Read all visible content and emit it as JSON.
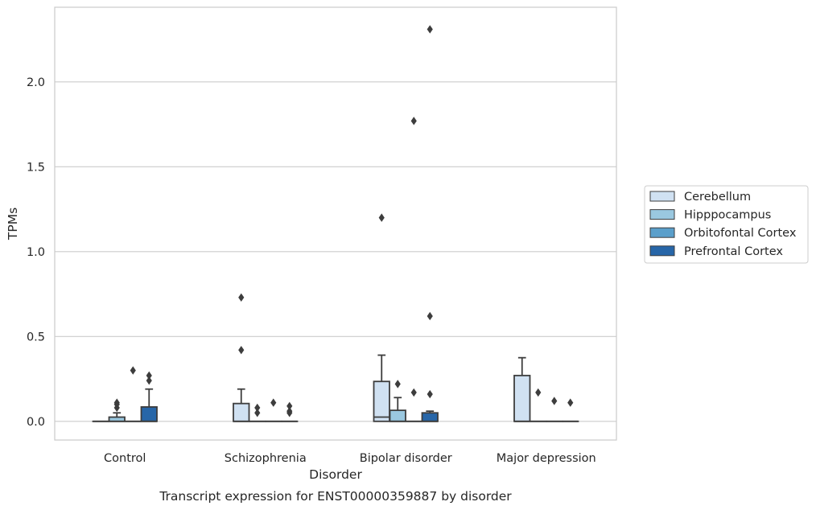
{
  "chart_data": {
    "type": "box",
    "title": "",
    "caption": "Transcript expression for ENST00000359887 by disorder",
    "xlabel": "Disorder",
    "ylabel": "TPMs",
    "ylim": [
      -0.11,
      2.44
    ],
    "yticks": [
      0.0,
      0.5,
      1.0,
      1.5,
      2.0
    ],
    "ytick_labels": [
      "0.0",
      "0.5",
      "1.0",
      "1.5",
      "2.0"
    ],
    "grid": "horizontal",
    "legend_position": "right",
    "categories": [
      "Control",
      "Schizophrenia",
      "Bipolar disorder",
      "Major depression"
    ],
    "series": [
      {
        "name": "Cerebellum",
        "color": "#d0e1f2",
        "boxes": [
          {
            "q1": 0,
            "median": 0,
            "q3": 0,
            "whislo": 0,
            "whishi": 0,
            "fliers": []
          },
          {
            "q1": 0,
            "median": 0,
            "q3": 0.105,
            "whislo": 0,
            "whishi": 0.19,
            "fliers": [
              0.42,
              0.73
            ]
          },
          {
            "q1": 0,
            "median": 0.025,
            "q3": 0.235,
            "whislo": 0,
            "whishi": 0.39,
            "fliers": [
              1.2
            ]
          },
          {
            "q1": 0,
            "median": 0,
            "q3": 0.27,
            "whislo": 0,
            "whishi": 0.375,
            "fliers": []
          }
        ]
      },
      {
        "name": "Hipppocampus",
        "color": "#9ac8e0",
        "boxes": [
          {
            "q1": 0,
            "median": 0,
            "q3": 0.025,
            "whislo": 0,
            "whishi": 0.05,
            "fliers": [
              0.08,
              0.1,
              0.11
            ]
          },
          {
            "q1": 0,
            "median": 0,
            "q3": 0,
            "whislo": 0,
            "whishi": 0,
            "fliers": [
              0.05,
              0.08
            ]
          },
          {
            "q1": 0,
            "median": 0,
            "q3": 0.065,
            "whislo": 0,
            "whishi": 0.14,
            "fliers": [
              0.22
            ]
          },
          {
            "q1": 0,
            "median": 0,
            "q3": 0,
            "whislo": 0,
            "whishi": 0,
            "fliers": [
              0.17
            ]
          }
        ]
      },
      {
        "name": "Orbitofontal Cortex",
        "color": "#5a9fcb",
        "boxes": [
          {
            "q1": 0,
            "median": 0,
            "q3": 0,
            "whislo": 0,
            "whishi": 0,
            "fliers": [
              0.3
            ]
          },
          {
            "q1": 0,
            "median": 0,
            "q3": 0,
            "whislo": 0,
            "whishi": 0,
            "fliers": [
              0.11
            ]
          },
          {
            "q1": 0,
            "median": 0,
            "q3": 0,
            "whislo": 0,
            "whishi": 0,
            "fliers": [
              0.17,
              1.77
            ]
          },
          {
            "q1": 0,
            "median": 0,
            "q3": 0,
            "whislo": 0,
            "whishi": 0,
            "fliers": [
              0.12
            ]
          }
        ]
      },
      {
        "name": "Prefrontal Cortex",
        "color": "#2766a8",
        "boxes": [
          {
            "q1": 0,
            "median": 0,
            "q3": 0.085,
            "whislo": 0,
            "whishi": 0.19,
            "fliers": [
              0.24,
              0.27
            ]
          },
          {
            "q1": 0,
            "median": 0,
            "q3": 0,
            "whislo": 0,
            "whishi": 0,
            "fliers": [
              0.05,
              0.06,
              0.09
            ]
          },
          {
            "q1": 0,
            "median": 0,
            "q3": 0.05,
            "whislo": 0,
            "whishi": 0.06,
            "fliers": [
              0.16,
              0.62,
              2.31
            ]
          },
          {
            "q1": 0,
            "median": 0,
            "q3": 0,
            "whislo": 0,
            "whishi": 0,
            "fliers": [
              0.11
            ]
          }
        ]
      }
    ]
  }
}
